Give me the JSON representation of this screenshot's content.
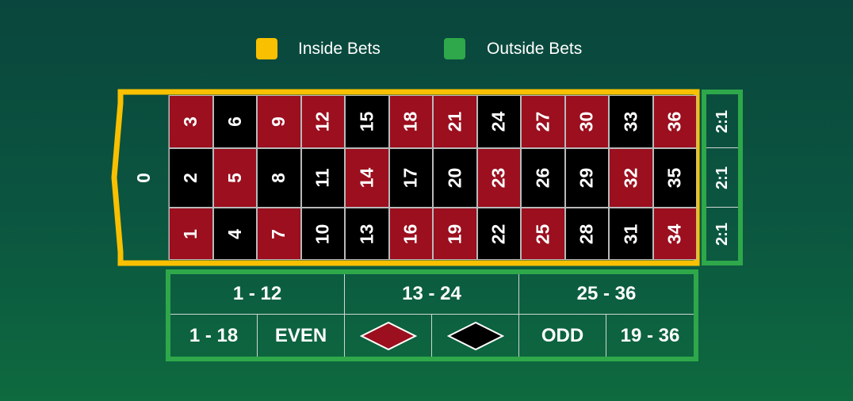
{
  "legend": [
    {
      "label": "Inside Bets",
      "color": "#f8c000"
    },
    {
      "label": "Outside Bets",
      "color": "#2ea84a"
    }
  ],
  "colors": {
    "red": "#9b0f1e",
    "black": "#000000",
    "felt": "#0b5640",
    "inside_border": "#f8c000",
    "outside_border": "#2ea84a"
  },
  "zero": "0",
  "numbers": {
    "top_row": [
      "3",
      "6",
      "9",
      "12",
      "15",
      "18",
      "21",
      "24",
      "27",
      "30",
      "33",
      "36"
    ],
    "middle_row": [
      "2",
      "5",
      "8",
      "11",
      "14",
      "17",
      "20",
      "23",
      "26",
      "29",
      "32",
      "35"
    ],
    "bottom_row": [
      "1",
      "4",
      "7",
      "10",
      "13",
      "16",
      "19",
      "22",
      "25",
      "28",
      "31",
      "34"
    ]
  },
  "red_numbers": [
    "1",
    "3",
    "5",
    "7",
    "9",
    "12",
    "14",
    "16",
    "18",
    "19",
    "21",
    "23",
    "25",
    "27",
    "30",
    "32",
    "34",
    "36"
  ],
  "columns": [
    "2:1",
    "2:1",
    "2:1"
  ],
  "dozens": [
    "1 - 12",
    "13 - 24",
    "25 - 36"
  ],
  "even_money": [
    {
      "label": "1 - 18"
    },
    {
      "label": "EVEN"
    },
    {
      "label": "",
      "icon": "red-diamond-icon"
    },
    {
      "label": "",
      "icon": "black-diamond-icon"
    },
    {
      "label": "ODD"
    },
    {
      "label": "19 - 36"
    }
  ]
}
